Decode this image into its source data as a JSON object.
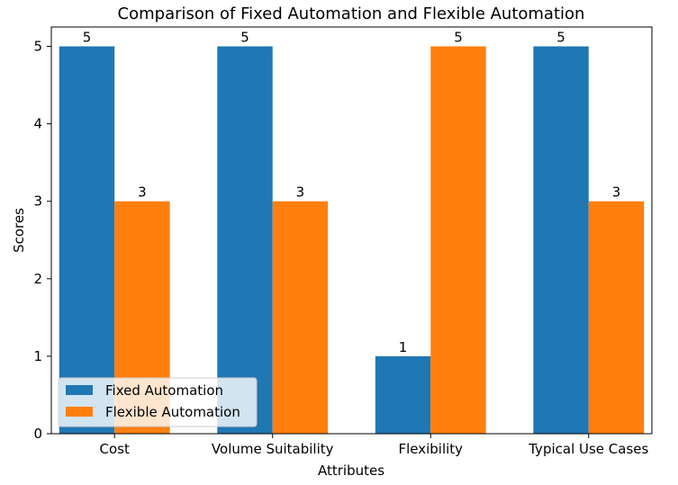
{
  "chart_data": {
    "type": "bar",
    "title": "Comparison of Fixed Automation and Flexible Automation",
    "xlabel": "Attributes",
    "ylabel": "Scores",
    "categories": [
      "Cost",
      "Volume Suitability",
      "Flexibility",
      "Typical Use Cases"
    ],
    "series": [
      {
        "name": "Fixed Automation",
        "values": [
          5,
          5,
          1,
          5
        ],
        "color": "#1f77b4"
      },
      {
        "name": "Flexible Automation",
        "values": [
          3,
          3,
          5,
          3
        ],
        "color": "#ff7f0e"
      }
    ],
    "ylim": [
      0,
      5.25
    ],
    "yticks": [
      "0",
      "1",
      "2",
      "3",
      "4",
      "5"
    ],
    "legend_position": "lower-left",
    "grid": false
  }
}
